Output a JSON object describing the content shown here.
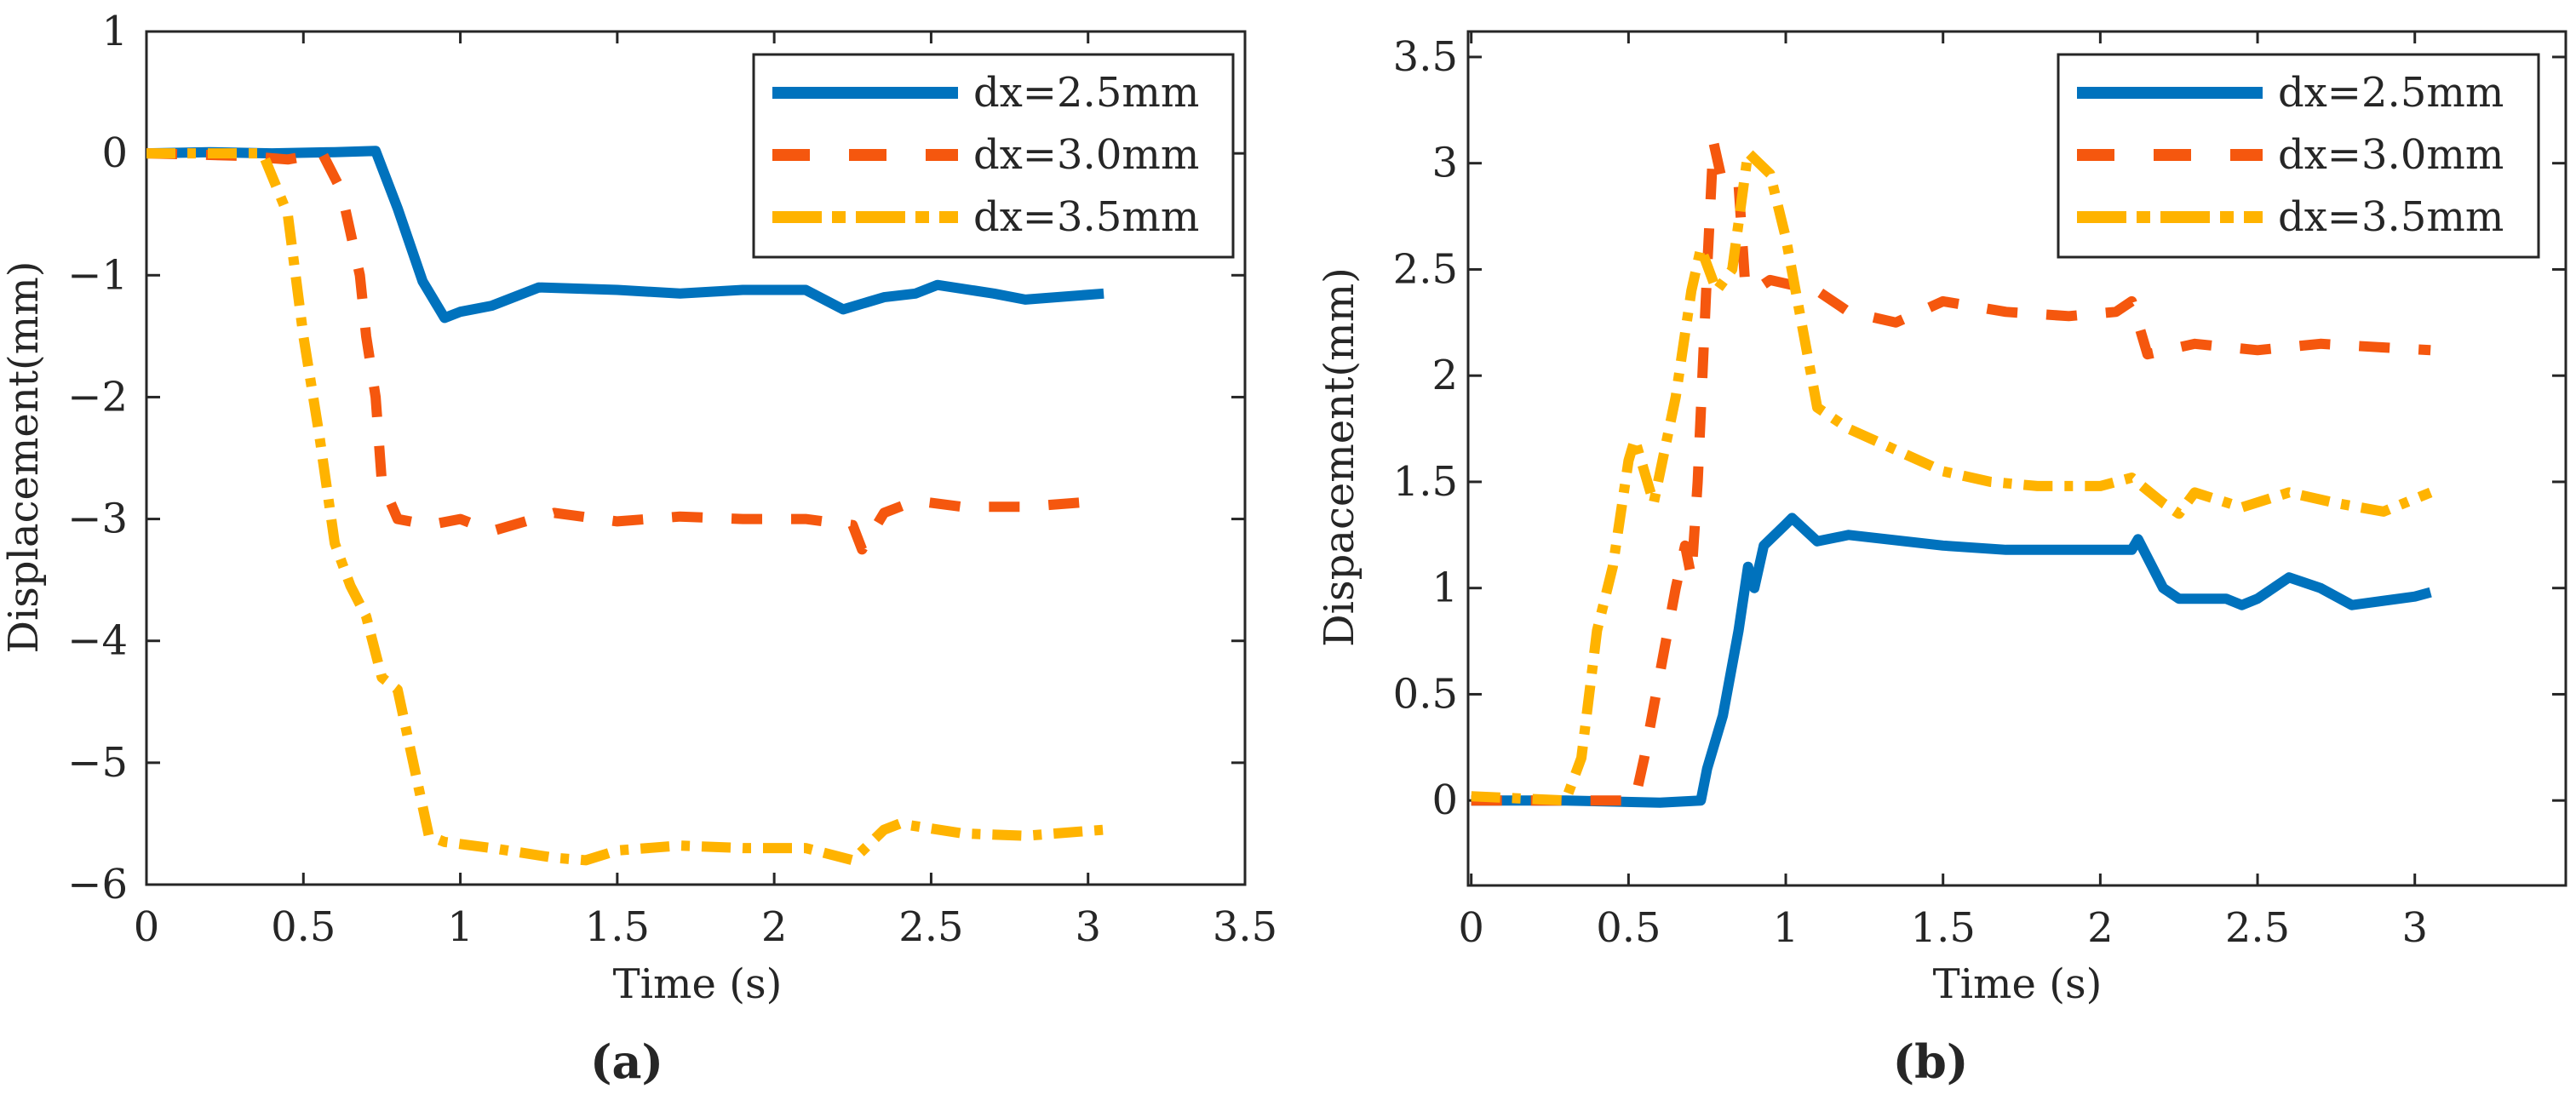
{
  "colors": {
    "s1": "#0072BD",
    "s2": "#F5570E",
    "s3": "#FFB300"
  },
  "chart_data": [
    {
      "type": "line",
      "panel_label": "(a)",
      "xlabel": "Time (s)",
      "ylabel": "Displacement(mm)",
      "xlim": [
        0,
        3.5
      ],
      "ylim": [
        -6,
        1
      ],
      "xticks": [
        0,
        0.5,
        1,
        1.5,
        2,
        2.5,
        3,
        3.5
      ],
      "xtick_labels": [
        "0",
        "0.5",
        "1",
        "1.5",
        "2",
        "2.5",
        "3",
        "3.5"
      ],
      "yticks": [
        1,
        0,
        -1,
        -2,
        -3,
        -4,
        -5,
        -6
      ],
      "ytick_labels": [
        "1",
        "0",
        "−1",
        "−2",
        "−3",
        "−4",
        "−5",
        "−6"
      ],
      "legend_position": "top-right",
      "series": [
        {
          "name": "dx=2.5mm",
          "style": "solid",
          "x": [
            0,
            0.2,
            0.4,
            0.6,
            0.73,
            0.8,
            0.88,
            0.95,
            1.0,
            1.1,
            1.25,
            1.5,
            1.7,
            1.9,
            2.1,
            2.22,
            2.35,
            2.45,
            2.52,
            2.7,
            2.8,
            3.05
          ],
          "y": [
            0,
            0.01,
            0,
            0.01,
            0.02,
            -0.45,
            -1.05,
            -1.35,
            -1.3,
            -1.25,
            -1.1,
            -1.12,
            -1.15,
            -1.12,
            -1.12,
            -1.28,
            -1.18,
            -1.15,
            -1.08,
            -1.15,
            -1.2,
            -1.15
          ]
        },
        {
          "name": "dx=3.0mm",
          "style": "dashed",
          "x": [
            0,
            0.3,
            0.45,
            0.56,
            0.62,
            0.68,
            0.7,
            0.73,
            0.75,
            0.8,
            0.9,
            1.0,
            1.1,
            1.3,
            1.5,
            1.7,
            1.9,
            2.1,
            2.25,
            2.28,
            2.35,
            2.45,
            2.6,
            2.8,
            3.05
          ],
          "y": [
            0,
            -0.02,
            -0.05,
            0,
            -0.3,
            -1.0,
            -1.5,
            -2.0,
            -2.7,
            -3.0,
            -3.05,
            -3.0,
            -3.1,
            -2.95,
            -3.02,
            -2.98,
            -3.0,
            -3.0,
            -3.05,
            -3.25,
            -2.95,
            -2.85,
            -2.9,
            -2.9,
            -2.85
          ]
        },
        {
          "name": "dx=3.5mm",
          "style": "dash-dot",
          "x": [
            0,
            0.2,
            0.37,
            0.45,
            0.5,
            0.55,
            0.6,
            0.65,
            0.7,
            0.75,
            0.8,
            0.85,
            0.9,
            0.95,
            1.1,
            1.3,
            1.4,
            1.5,
            1.7,
            1.9,
            2.1,
            2.25,
            2.35,
            2.4,
            2.6,
            2.8,
            3.05
          ],
          "y": [
            0,
            0,
            0,
            -0.5,
            -1.5,
            -2.3,
            -3.2,
            -3.55,
            -3.8,
            -4.3,
            -4.4,
            -5.0,
            -5.6,
            -5.65,
            -5.7,
            -5.78,
            -5.8,
            -5.72,
            -5.68,
            -5.7,
            -5.7,
            -5.8,
            -5.55,
            -5.5,
            -5.58,
            -5.6,
            -5.55
          ]
        }
      ]
    },
    {
      "type": "line",
      "panel_label": "(b)",
      "xlabel": "Time (s)",
      "ylabel": "Dispacement(mm)",
      "xlim": [
        -0.01,
        3.48
      ],
      "ylim": [
        -0.4,
        3.62
      ],
      "xticks": [
        0,
        0.5,
        1,
        1.5,
        2,
        2.5,
        3
      ],
      "xtick_labels": [
        "0",
        "0.5",
        "1",
        "1.5",
        "2",
        "2.5",
        "3"
      ],
      "yticks": [
        0,
        0.5,
        1,
        1.5,
        2,
        2.5,
        3,
        3.5
      ],
      "ytick_labels": [
        "0",
        "0.5",
        "1",
        "1.5",
        "2",
        "2.5",
        "3",
        "3.5"
      ],
      "legend_position": "top-right",
      "series": [
        {
          "name": "dx=2.5mm",
          "style": "solid",
          "x": [
            0,
            0.3,
            0.6,
            0.73,
            0.75,
            0.8,
            0.85,
            0.88,
            0.9,
            0.93,
            1.0,
            1.02,
            1.1,
            1.2,
            1.5,
            1.7,
            2.0,
            2.1,
            2.12,
            2.2,
            2.25,
            2.4,
            2.45,
            2.5,
            2.6,
            2.7,
            2.8,
            3.0,
            3.05
          ],
          "y": [
            0,
            0,
            -0.01,
            0,
            0.15,
            0.4,
            0.8,
            1.1,
            1.0,
            1.2,
            1.3,
            1.33,
            1.22,
            1.25,
            1.2,
            1.18,
            1.18,
            1.18,
            1.23,
            1.0,
            0.95,
            0.95,
            0.92,
            0.95,
            1.05,
            1.0,
            0.92,
            0.96,
            0.98
          ]
        },
        {
          "name": "dx=3.0mm",
          "style": "dashed",
          "x": [
            0,
            0.3,
            0.52,
            0.55,
            0.6,
            0.65,
            0.68,
            0.7,
            0.72,
            0.75,
            0.77,
            0.8,
            0.85,
            0.87,
            0.9,
            0.95,
            1.1,
            1.2,
            1.35,
            1.5,
            1.7,
            1.9,
            2.05,
            2.1,
            2.15,
            2.3,
            2.5,
            2.7,
            3.05
          ],
          "y": [
            0,
            0,
            0,
            0.2,
            0.6,
            1.0,
            1.2,
            1.05,
            1.5,
            2.5,
            3.1,
            2.9,
            2.9,
            2.45,
            2.4,
            2.45,
            2.4,
            2.3,
            2.25,
            2.35,
            2.3,
            2.28,
            2.3,
            2.35,
            2.1,
            2.15,
            2.12,
            2.15,
            2.12
          ]
        },
        {
          "name": "dx=3.5mm",
          "style": "dash-dot",
          "x": [
            0,
            0.15,
            0.3,
            0.35,
            0.4,
            0.45,
            0.5,
            0.52,
            0.58,
            0.65,
            0.7,
            0.73,
            0.78,
            0.83,
            0.88,
            0.95,
            1.0,
            1.05,
            1.1,
            1.2,
            1.35,
            1.5,
            1.65,
            1.8,
            2.0,
            2.1,
            2.2,
            2.25,
            2.3,
            2.45,
            2.6,
            2.75,
            2.9,
            3.05
          ],
          "y": [
            0.02,
            0.01,
            0,
            0.2,
            0.8,
            1.1,
            1.6,
            1.7,
            1.4,
            1.9,
            2.4,
            2.6,
            2.4,
            2.5,
            3.05,
            2.95,
            2.65,
            2.25,
            1.85,
            1.75,
            1.65,
            1.55,
            1.5,
            1.48,
            1.48,
            1.52,
            1.4,
            1.35,
            1.45,
            1.38,
            1.45,
            1.4,
            1.36,
            1.45
          ]
        }
      ]
    }
  ]
}
